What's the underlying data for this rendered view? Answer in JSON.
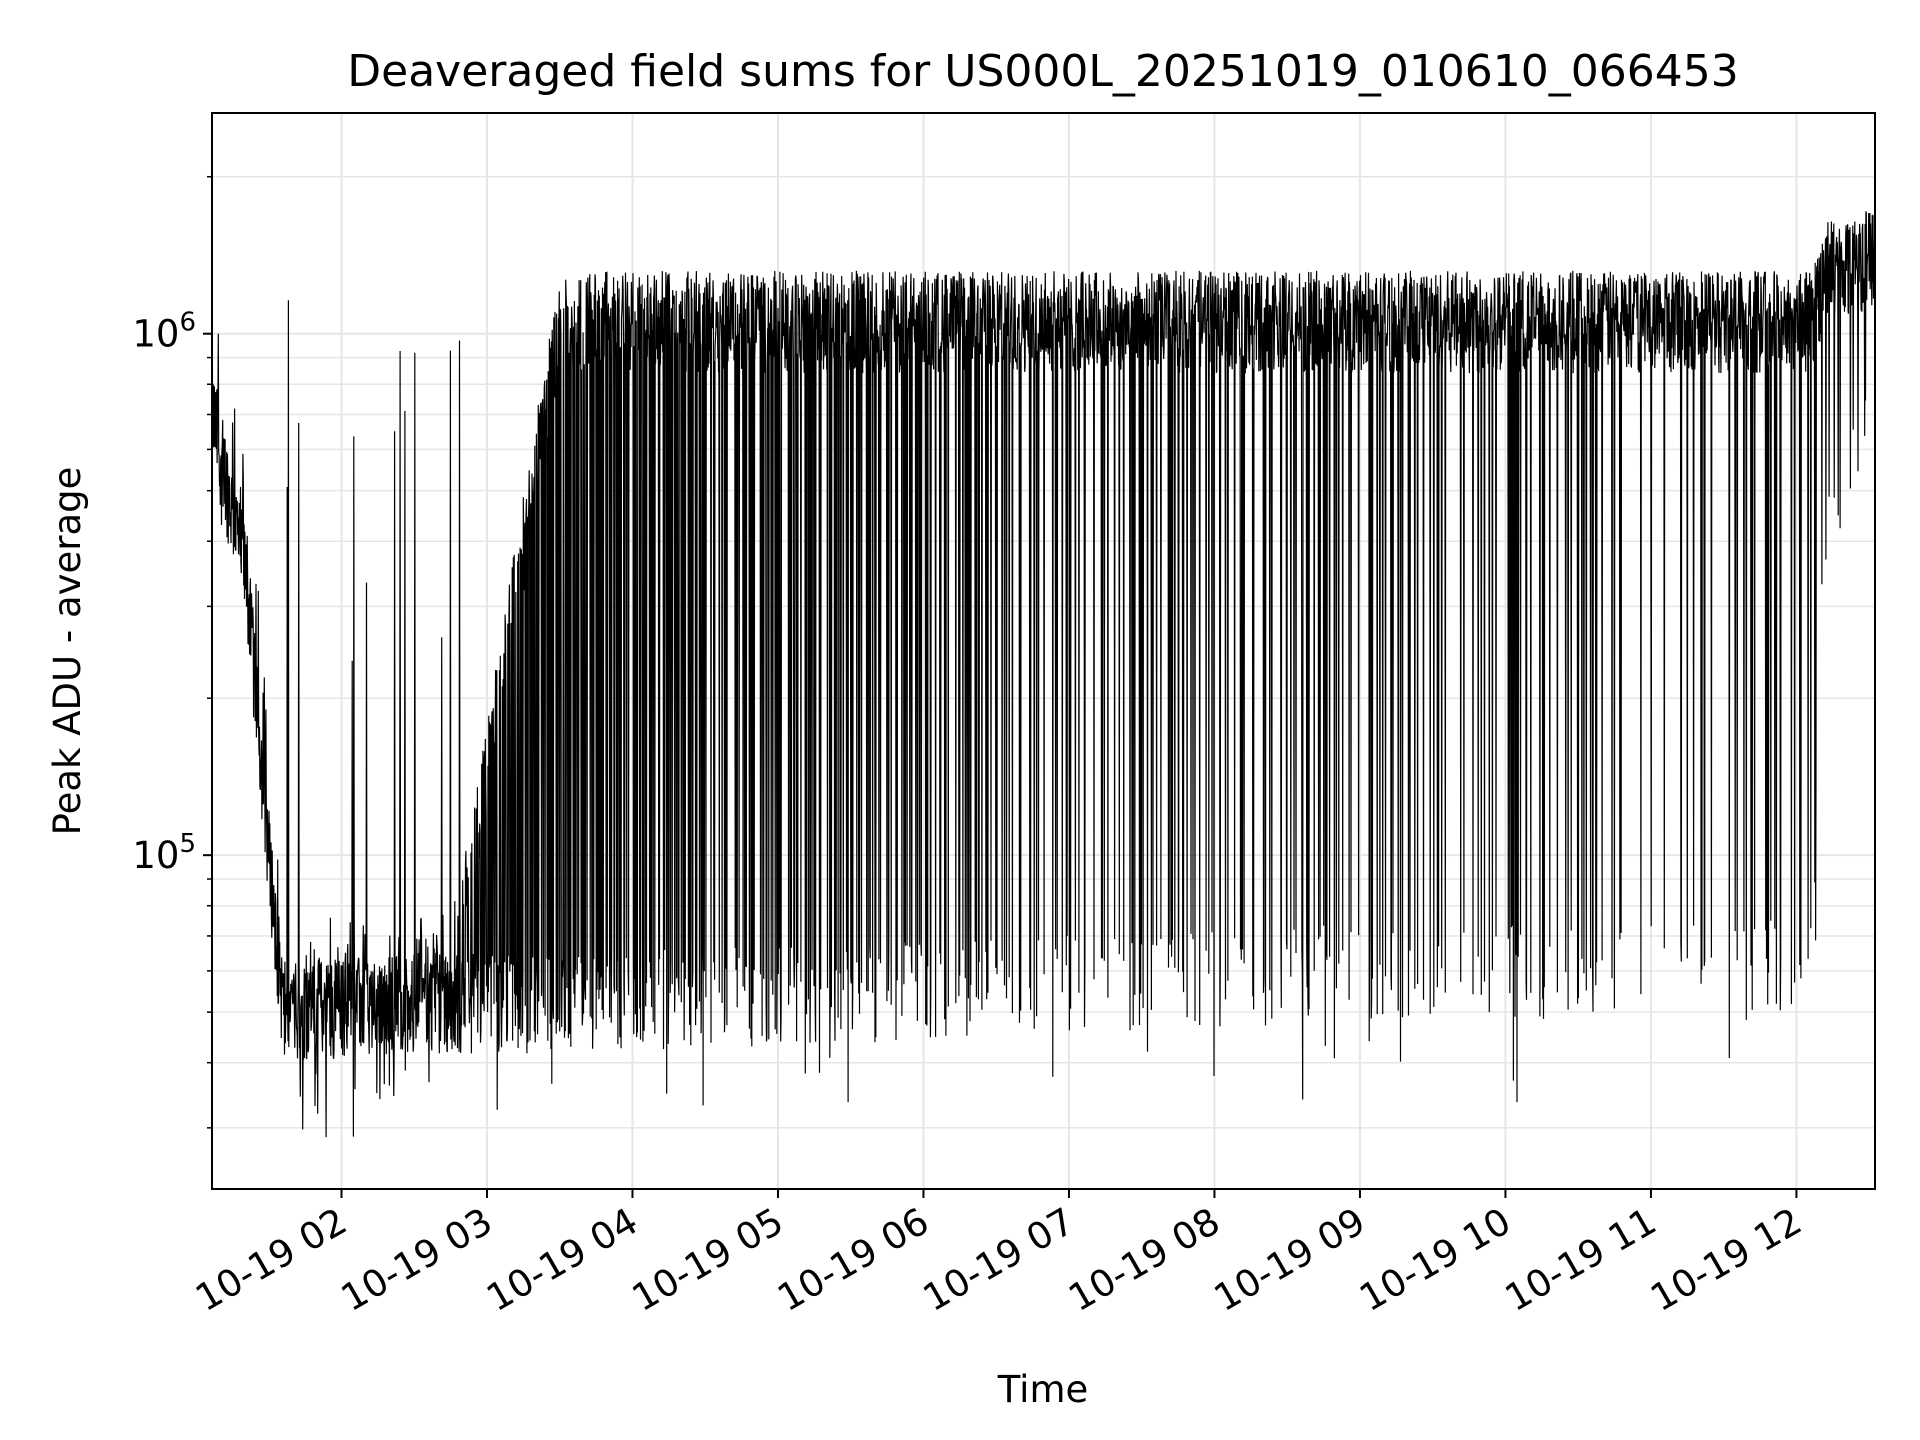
{
  "chart_data": {
    "type": "line",
    "title": "Deaveraged field sums for US000L_20251019_010610_066453",
    "xlabel": "Time",
    "ylabel": "Peak ADU - average",
    "yscale": "log",
    "ylim": [
      22900,
      2650000
    ],
    "xlim_hours": [
      1.11,
      12.54
    ],
    "x_ticks": [
      {
        "hour": 2,
        "label": "10-19 02"
      },
      {
        "hour": 3,
        "label": "10-19 03"
      },
      {
        "hour": 4,
        "label": "10-19 04"
      },
      {
        "hour": 5,
        "label": "10-19 05"
      },
      {
        "hour": 6,
        "label": "10-19 06"
      },
      {
        "hour": 7,
        "label": "10-19 07"
      },
      {
        "hour": 8,
        "label": "10-19 08"
      },
      {
        "hour": 9,
        "label": "10-19 09"
      },
      {
        "hour": 10,
        "label": "10-19 10"
      },
      {
        "hour": 11,
        "label": "10-19 11"
      },
      {
        "hour": 12,
        "label": "10-19 12"
      }
    ],
    "y_ticks": [
      {
        "value": 100000,
        "base": "10",
        "exp": "5"
      },
      {
        "value": 1000000,
        "base": "10",
        "exp": "6"
      }
    ],
    "grid": true,
    "line_color": "#000000",
    "grid_color": "#e6e6e6",
    "series_envelope": [
      {
        "hour": 1.11,
        "low": 700000,
        "high": 1200000,
        "spike_rate": 0.1
      },
      {
        "hour": 1.35,
        "low": 330000,
        "high": 500000,
        "spike_rate": 0.1
      },
      {
        "hour": 1.5,
        "low": 100000,
        "high": 200000,
        "spike_rate": 0.1
      },
      {
        "hour": 1.6,
        "low": 50000,
        "high": 70000,
        "spike_rate": 0.08
      },
      {
        "hour": 2.5,
        "low": 52000,
        "high": 72000,
        "spike_rate": 0.08
      },
      {
        "hour": 2.8,
        "low": 52000,
        "high": 75000,
        "spike_rate": 0.25
      },
      {
        "hour": 3.5,
        "low": 52000,
        "high": 1200000,
        "spike_rate": 0.7
      },
      {
        "hour": 6.0,
        "low": 55000,
        "high": 1200000,
        "spike_rate": 0.85
      },
      {
        "hour": 9.0,
        "low": 60000,
        "high": 1200000,
        "spike_rate": 0.9
      },
      {
        "hour": 12.1,
        "low": 60000,
        "high": 1200000,
        "spike_rate": 0.9
      },
      {
        "hour": 12.2,
        "low": 450000,
        "high": 1500000,
        "spike_rate": 0.9
      },
      {
        "hour": 12.54,
        "low": 700000,
        "high": 1600000,
        "spike_rate": 0.9
      }
    ]
  }
}
